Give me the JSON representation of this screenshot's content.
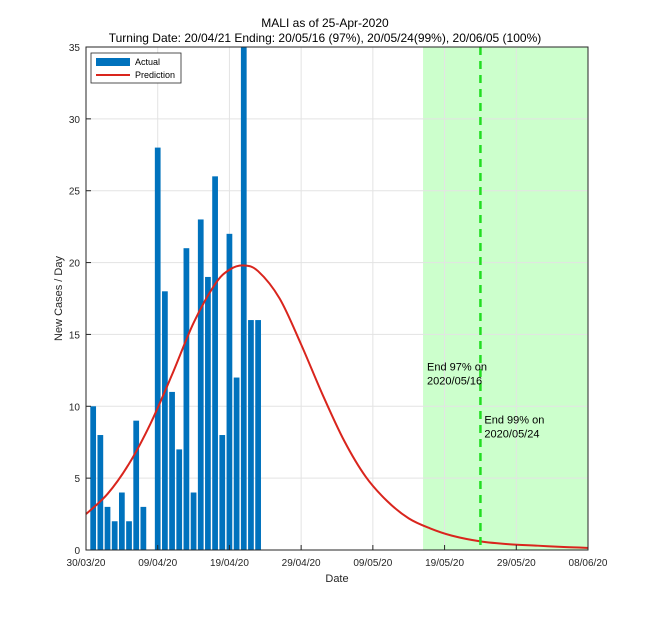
{
  "chart_data": {
    "type": "bar",
    "title": "MALI as of 25-Apr-2020",
    "subtitle": "Turning Date: 20/04/21  Ending: 20/05/16 (97%), 20/05/24(99%), 20/06/05 (100%)",
    "xlabel": "Date",
    "ylabel": "New Cases / Day",
    "xlim": [
      "2020-03-30",
      "2020-06-08"
    ],
    "ylim": [
      0,
      35
    ],
    "yticks": [
      0,
      5,
      10,
      15,
      20,
      25,
      30,
      35
    ],
    "xtick_dates": [
      "2020-03-30",
      "2020-04-09",
      "2020-04-19",
      "2020-04-29",
      "2020-05-09",
      "2020-05-19",
      "2020-05-29",
      "2020-06-08"
    ],
    "xtick_labels": [
      "30/03/20",
      "09/04/20",
      "19/04/20",
      "29/04/20",
      "09/05/20",
      "19/05/20",
      "29/05/20",
      "08/06/20"
    ],
    "grid": true,
    "legend_position": "top-left",
    "colors": {
      "actual": "#0072bd",
      "prediction": "#d9251d",
      "end_region": "#ccffcc",
      "end_line": "#22dd22"
    },
    "series": [
      {
        "name": "Actual",
        "type": "bar",
        "x": [
          "2020-03-31",
          "2020-04-01",
          "2020-04-02",
          "2020-04-03",
          "2020-04-04",
          "2020-04-05",
          "2020-04-06",
          "2020-04-07",
          "2020-04-08",
          "2020-04-09",
          "2020-04-10",
          "2020-04-11",
          "2020-04-12",
          "2020-04-13",
          "2020-04-14",
          "2020-04-15",
          "2020-04-16",
          "2020-04-17",
          "2020-04-18",
          "2020-04-19",
          "2020-04-20",
          "2020-04-21",
          "2020-04-22",
          "2020-04-23",
          "2020-04-24",
          "2020-04-25"
        ],
        "values": [
          10,
          8,
          3,
          2,
          4,
          2,
          9,
          3,
          0,
          28,
          18,
          11,
          7,
          21,
          4,
          23,
          19,
          26,
          8,
          22,
          12,
          35,
          16,
          16,
          0,
          0
        ]
      },
      {
        "name": "Prediction",
        "type": "line",
        "x": [
          "2020-03-30",
          "2020-04-02",
          "2020-04-05",
          "2020-04-08",
          "2020-04-11",
          "2020-04-14",
          "2020-04-17",
          "2020-04-19",
          "2020-04-21",
          "2020-04-23",
          "2020-04-26",
          "2020-04-29",
          "2020-05-02",
          "2020-05-05",
          "2020-05-08",
          "2020-05-11",
          "2020-05-14",
          "2020-05-17",
          "2020-05-20",
          "2020-05-24",
          "2020-05-28",
          "2020-06-01",
          "2020-06-05",
          "2020-06-08"
        ],
        "values": [
          2.5,
          3.9,
          6.0,
          8.8,
          12.2,
          15.8,
          18.5,
          19.5,
          19.8,
          19.4,
          17.5,
          14.3,
          10.8,
          7.6,
          5.1,
          3.4,
          2.2,
          1.5,
          1.0,
          0.6,
          0.4,
          0.3,
          0.2,
          0.15
        ]
      }
    ],
    "end_region": {
      "start": "2020-05-16",
      "end": "2020-06-08"
    },
    "end_line": {
      "date": "2020-05-24"
    },
    "annotations": [
      {
        "text": [
          "End 97% on",
          "2020/05/16"
        ],
        "x": "2020-05-16",
        "y": 12.5
      },
      {
        "text": [
          "End 99% on",
          "2020/05/24"
        ],
        "x": "2020-05-24",
        "y": 8.8
      }
    ]
  }
}
